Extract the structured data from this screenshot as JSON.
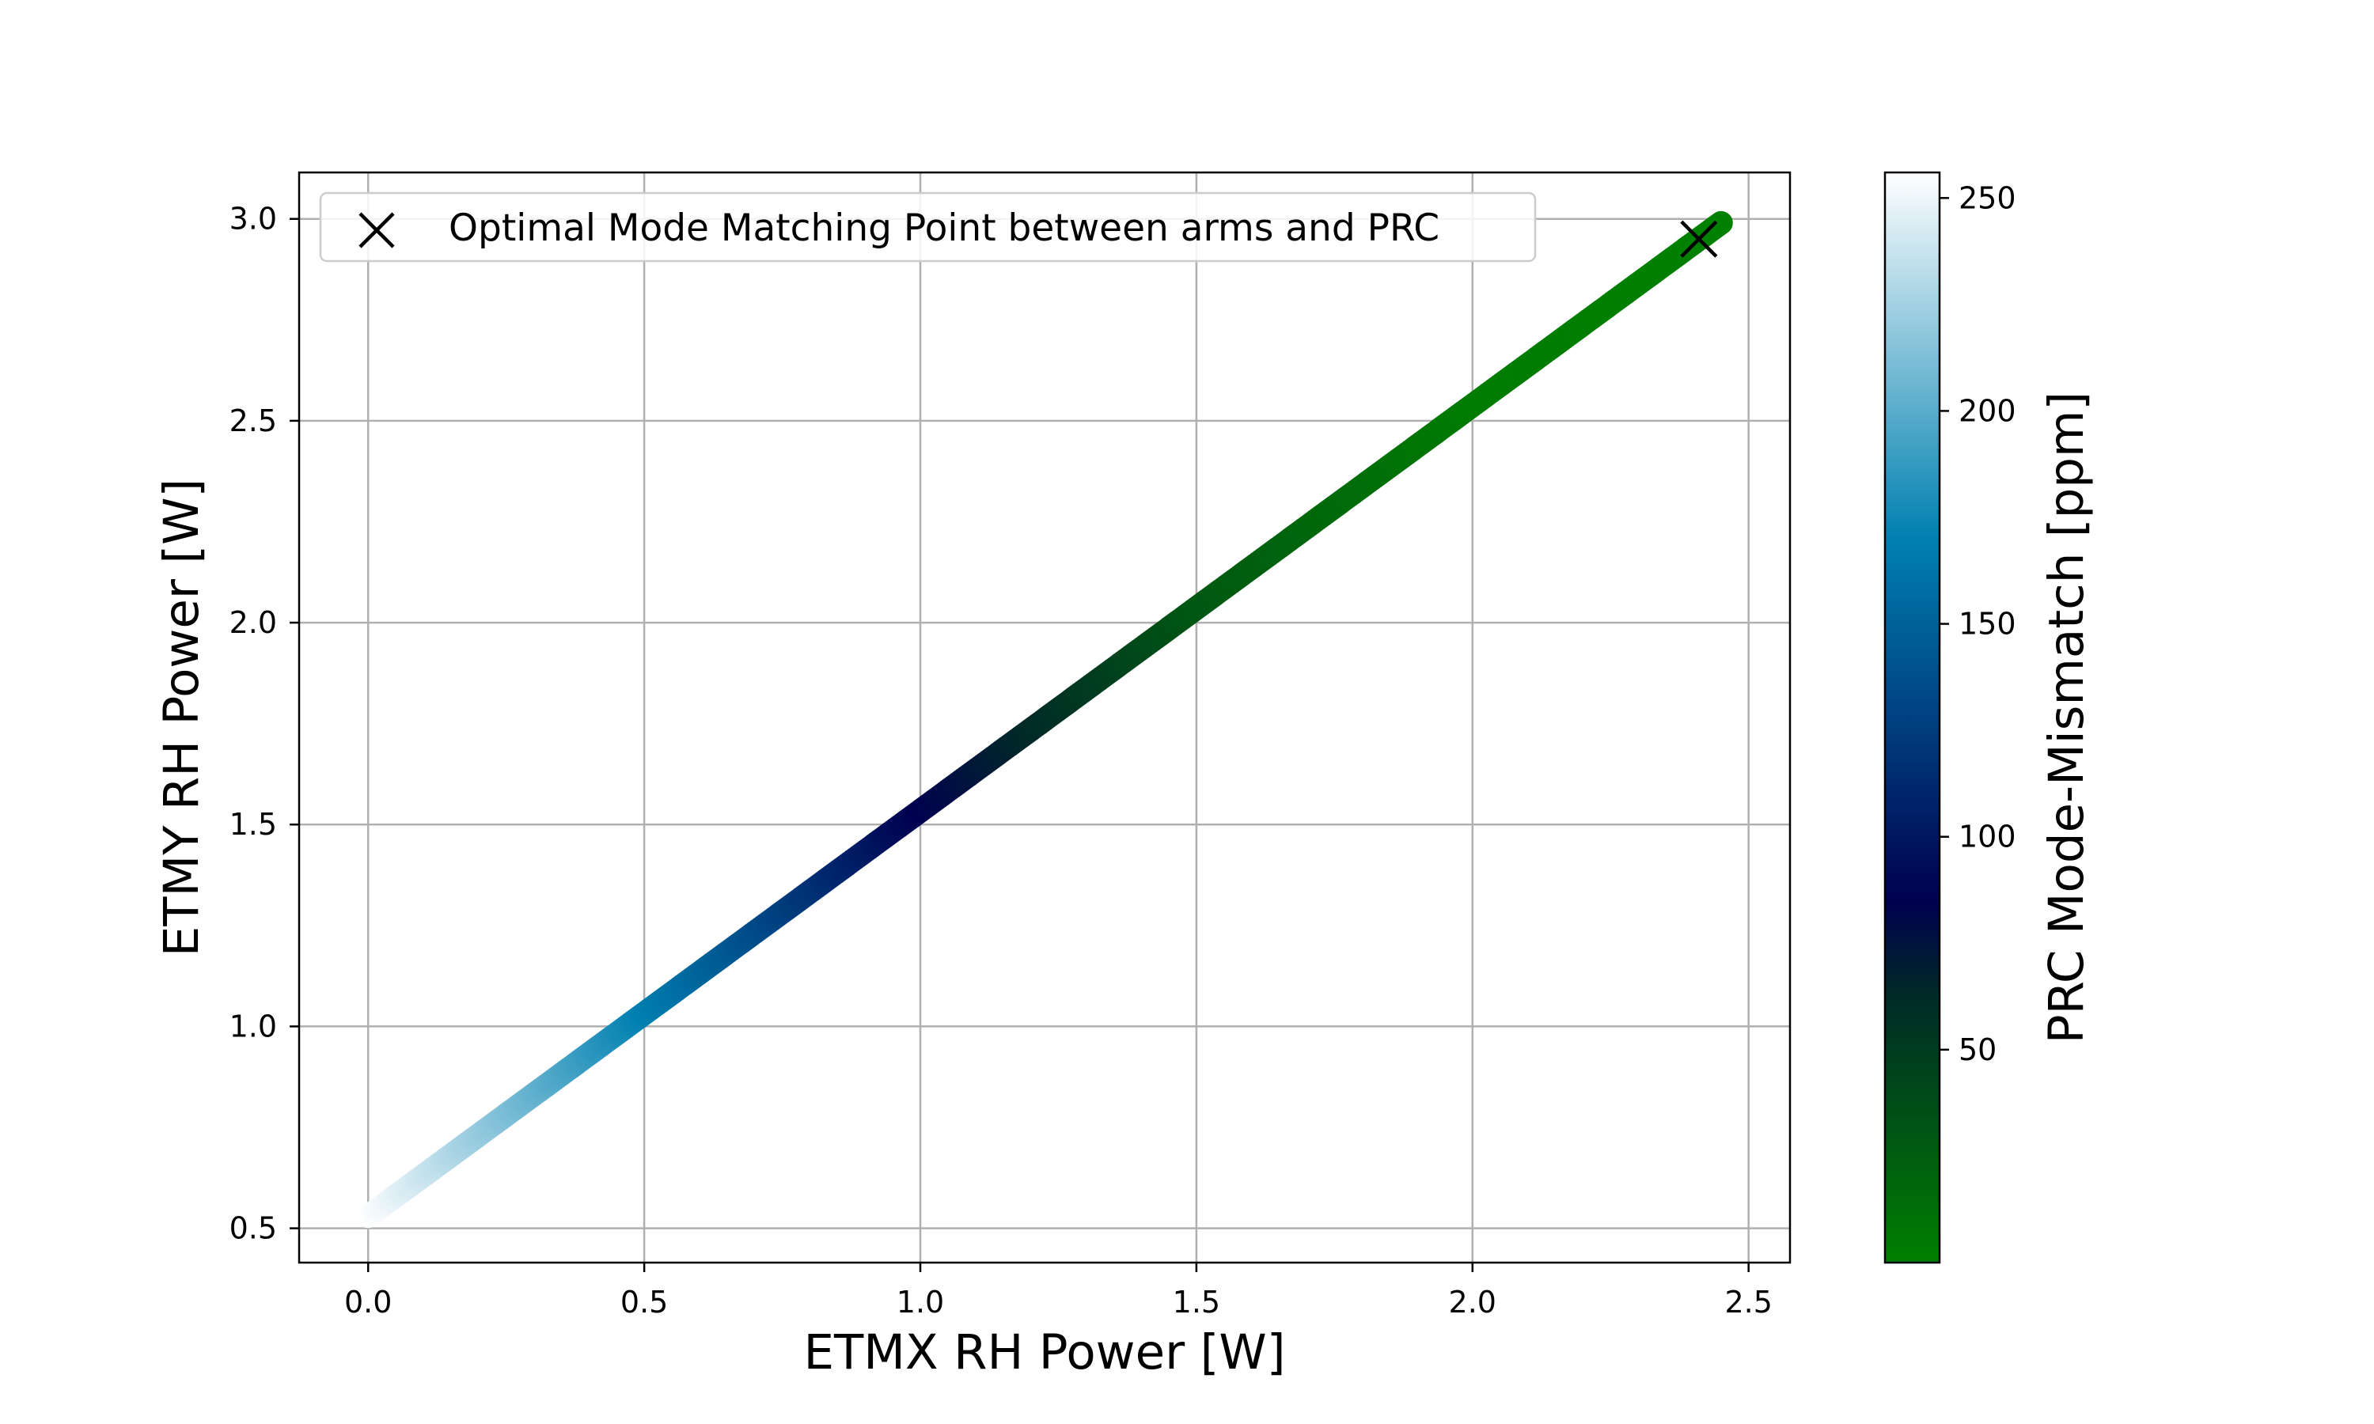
{
  "chart_data": {
    "type": "scatter",
    "xlabel": "ETMX RH Power [W]",
    "ylabel": "ETMY RH Power [W]",
    "xlim": [
      -0.125,
      2.575
    ],
    "ylim": [
      0.415,
      3.115
    ],
    "xticks": [
      0.0,
      0.5,
      1.0,
      1.5,
      2.0,
      2.5
    ],
    "xtick_labels": [
      "0.0",
      "0.5",
      "1.0",
      "1.5",
      "2.0",
      "2.5"
    ],
    "yticks": [
      0.5,
      1.0,
      1.5,
      2.0,
      2.5,
      3.0
    ],
    "ytick_labels": [
      "0.5",
      "1.0",
      "1.5",
      "2.0",
      "2.5",
      "3.0"
    ],
    "grid": true,
    "line": {
      "x_start": 0.0,
      "y_start": 0.53,
      "x_end": 2.45,
      "y_end": 2.99,
      "colormap_stops": [
        {
          "v": 0,
          "color": "#008000"
        },
        {
          "v": 64,
          "color": "#002828"
        },
        {
          "v": 85,
          "color": "#000050"
        },
        {
          "v": 170,
          "color": "#0080B0"
        },
        {
          "v": 256,
          "color": "#FFFFFF"
        }
      ],
      "mismatch_profile": [
        {
          "x": 0.0,
          "v": 256
        },
        {
          "x": 0.5,
          "v": 170
        },
        {
          "x": 1.0,
          "v": 85
        },
        {
          "x": 1.5,
          "v": 30
        },
        {
          "x": 2.0,
          "v": 3
        },
        {
          "x": 2.45,
          "v": 0
        }
      ]
    },
    "optimal_point": {
      "x": 2.41,
      "y": 2.95
    },
    "legend": {
      "location": "upper-left",
      "entries": [
        {
          "marker": "x",
          "label": "Optimal Mode Matching Point between arms and PRC"
        }
      ]
    },
    "colorbar": {
      "label": "PRC Mode-Mismatch [ppm]",
      "min": 0,
      "max": 256,
      "ticks": [
        50,
        100,
        150,
        200,
        250
      ],
      "tick_labels": [
        "50",
        "100",
        "150",
        "200",
        "250"
      ]
    }
  }
}
